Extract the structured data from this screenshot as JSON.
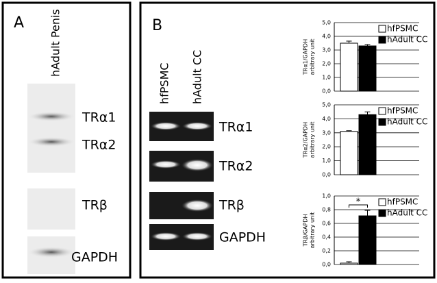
{
  "panel_a": {
    "label": "A",
    "lane": "hAdult Penis",
    "bands": [
      "TRα1",
      "TRα2",
      "TRβ",
      "GAPDH"
    ]
  },
  "panel_b": {
    "label": "B",
    "lanes": [
      "hfPSMC",
      "hAdult CC"
    ],
    "bands": [
      "TRα1",
      "TRα2",
      "TRβ",
      "GAPDH"
    ]
  },
  "chart_data": [
    {
      "type": "bar",
      "ylabel": [
        "TRα1/GAPDH",
        "arbitrary unit"
      ],
      "ylim": [
        0,
        5
      ],
      "yticks": [
        {
          "value": 0,
          "label": "0,0"
        },
        {
          "value": 1,
          "label": "1,0"
        },
        {
          "value": 2,
          "label": "2,0"
        },
        {
          "value": 3,
          "label": "3,0"
        },
        {
          "value": 4,
          "label": "4,0"
        },
        {
          "value": 5,
          "label": "5,0"
        }
      ],
      "grid": true,
      "legend": "top-right",
      "series": [
        {
          "name": "hfPSMC",
          "color": "#ffffff",
          "values": [
            3.5
          ],
          "errors": [
            0.15
          ]
        },
        {
          "name": "hAdult CC",
          "color": "#000000",
          "values": [
            3.3
          ],
          "errors": [
            0.1
          ]
        }
      ]
    },
    {
      "type": "bar",
      "ylabel": [
        "TRα2/GAPDH",
        "arbitrary unit"
      ],
      "ylim": [
        0,
        5
      ],
      "yticks": [
        {
          "value": 0,
          "label": "0,0"
        },
        {
          "value": 1,
          "label": "1,0"
        },
        {
          "value": 2,
          "label": "2,0"
        },
        {
          "value": 3,
          "label": "3,0"
        },
        {
          "value": 4,
          "label": "4,0"
        },
        {
          "value": 5,
          "label": "5,0"
        }
      ],
      "grid": true,
      "legend": "top-right",
      "series": [
        {
          "name": "hfPSMC",
          "color": "#ffffff",
          "values": [
            3.1
          ],
          "errors": [
            0.05
          ]
        },
        {
          "name": "hAdult CC",
          "color": "#000000",
          "values": [
            4.3
          ],
          "errors": [
            0.2
          ]
        }
      ]
    },
    {
      "type": "bar",
      "ylabel": [
        "TRβ/GAPDH",
        "arbitrary unit"
      ],
      "ylim": [
        0,
        1
      ],
      "yticks": [
        {
          "value": 0,
          "label": "0,0"
        },
        {
          "value": 0.2,
          "label": "0,2"
        },
        {
          "value": 0.4,
          "label": "0,4"
        },
        {
          "value": 0.6,
          "label": "0,6"
        },
        {
          "value": 0.8,
          "label": "0,8"
        },
        {
          "value": 1,
          "label": "1,0"
        }
      ],
      "grid": true,
      "legend": "top-right",
      "annotation": "*",
      "series": [
        {
          "name": "hfPSMC",
          "color": "#ffffff",
          "values": [
            0.02
          ],
          "errors": [
            0.02
          ]
        },
        {
          "name": "hAdult CC",
          "color": "#000000",
          "values": [
            0.71
          ],
          "errors": [
            0.08
          ]
        }
      ]
    }
  ]
}
